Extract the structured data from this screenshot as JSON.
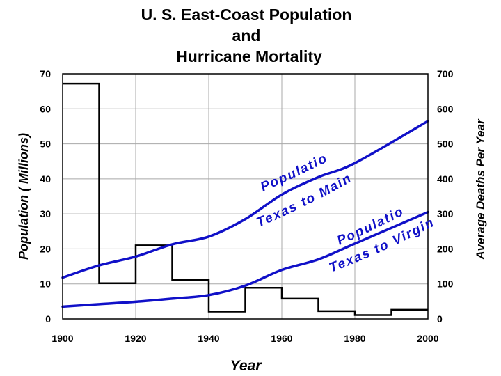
{
  "chart_data": {
    "type": "line",
    "title_lines": [
      "U.  S. East-Coast Population",
      "and",
      "Hurricane Mortality"
    ],
    "xlabel": "Year",
    "ylabel_left": "Population ( Millions)",
    "ylabel_right": "Average Deaths Per Year",
    "xlim": [
      1900,
      2000
    ],
    "ylim_left": [
      0,
      70
    ],
    "ylim_right": [
      0,
      700
    ],
    "x_ticks": [
      "1900",
      "1920",
      "1940",
      "1960",
      "1980",
      "2000"
    ],
    "y_ticks_left": [
      "0",
      "10",
      "20",
      "30",
      "40",
      "50",
      "60",
      "70"
    ],
    "y_ticks_right": [
      "0",
      "100",
      "200",
      "300",
      "400",
      "500",
      "600",
      "700"
    ],
    "grid": true,
    "colors": {
      "population": "#1010c8",
      "mortality": "#000000",
      "grid": "#a8a8a8"
    },
    "series": [
      {
        "axis": "right",
        "style": "step",
        "decades": [
          1900,
          1910,
          1920,
          1930,
          1940,
          1950,
          1960,
          1970,
          1980,
          1990
        ],
        "values": [
          672,
          102,
          210,
          111,
          21,
          89,
          58,
          22,
          11,
          26
        ]
      },
      {
        "axis": "left",
        "style": "line",
        "label_lines": [
          "Population",
          "Texas to Maine"
        ],
        "x": [
          1900,
          1910,
          1920,
          1930,
          1940,
          1950,
          1960,
          1970,
          1980,
          2000
        ],
        "values": [
          11.8,
          15.3,
          17.8,
          21.3,
          23.5,
          28.5,
          35.5,
          40.5,
          44.5,
          56.5
        ]
      },
      {
        "axis": "left",
        "style": "line",
        "label_lines": [
          "Population",
          "Texas to Virginia"
        ],
        "x": [
          1900,
          1910,
          1920,
          1930,
          1940,
          1950,
          1960,
          1970,
          1980,
          2000
        ],
        "values": [
          3.5,
          4.2,
          4.9,
          5.8,
          6.8,
          9.5,
          14.0,
          17.0,
          21.5,
          30.5
        ]
      }
    ]
  }
}
